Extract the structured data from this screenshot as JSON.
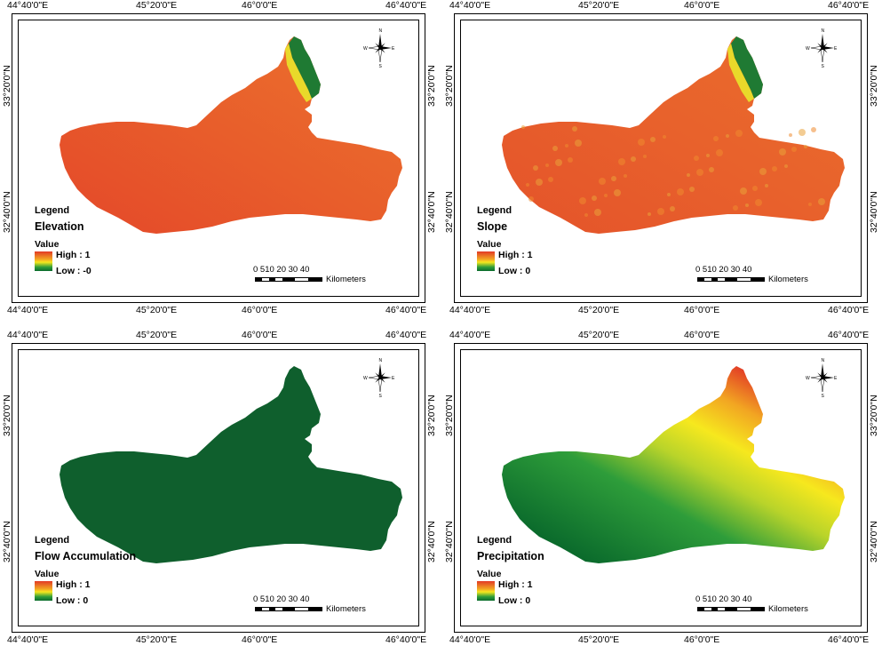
{
  "axes": {
    "lon_labels": [
      "44°40'0\"E",
      "45°20'0\"E",
      "46°0'0\"E",
      "46°40'0\"E"
    ],
    "lat_labels": [
      "33°20'0\"N",
      "32°40'0\"N"
    ]
  },
  "panels": [
    {
      "legend_title": "Legend",
      "layer_name": "Elevation",
      "value_label": "Value",
      "high_label": "High : 1",
      "low_label": "Low : -0"
    },
    {
      "legend_title": "Legend",
      "layer_name": "Slope",
      "value_label": "Value",
      "high_label": "High : 1",
      "low_label": "Low : 0"
    },
    {
      "legend_title": "Legend",
      "layer_name": "Flow Accumulation",
      "value_label": "Value",
      "high_label": "High : 1",
      "low_label": "Low : 0"
    },
    {
      "legend_title": "Legend",
      "layer_name": "Precipitation",
      "value_label": "Value",
      "high_label": "High : 1",
      "low_label": "Low : 0"
    }
  ],
  "scale_bar": {
    "ticks": "0 510  20   30   40",
    "unit": "Kilometers"
  },
  "north_arrow": {
    "n": "N",
    "s": "S",
    "e": "E",
    "w": "W"
  },
  "colors": {
    "high": "#e23a26",
    "mid": "#f6e81e",
    "low": "#0b6b2c"
  }
}
